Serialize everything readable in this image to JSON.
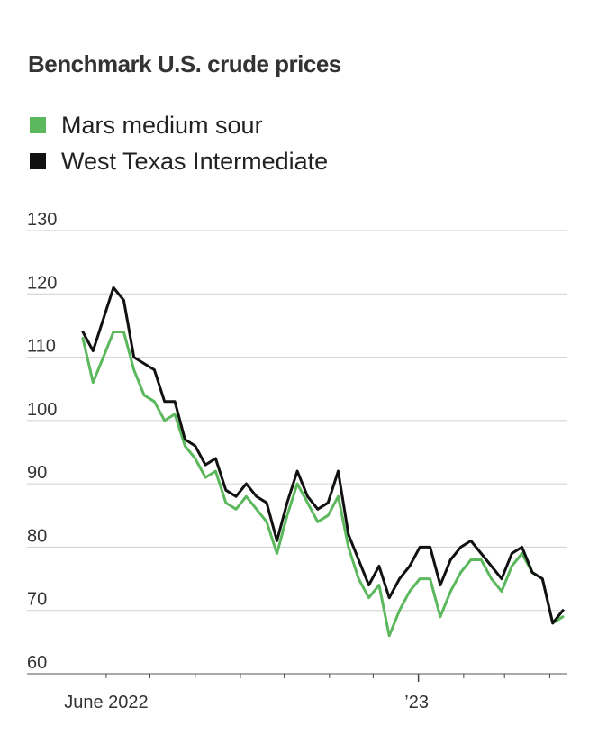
{
  "chart_data": {
    "type": "line",
    "title": "Benchmark U.S. crude prices",
    "xlabel": "",
    "ylabel": "",
    "ylim": [
      60,
      130
    ],
    "yticks": [
      130,
      120,
      110,
      100,
      90,
      80,
      70,
      60
    ],
    "xlim": [
      "2022-05-16",
      "2023-04-10"
    ],
    "xtick_labels": [
      "June 2022",
      "’23"
    ],
    "x": [
      "2022-05-16",
      "2022-05-23",
      "2022-05-30",
      "2022-06-06",
      "2022-06-13",
      "2022-06-20",
      "2022-06-27",
      "2022-07-04",
      "2022-07-11",
      "2022-07-18",
      "2022-07-25",
      "2022-08-01",
      "2022-08-08",
      "2022-08-15",
      "2022-08-22",
      "2022-08-29",
      "2022-09-05",
      "2022-09-12",
      "2022-09-19",
      "2022-09-26",
      "2022-10-03",
      "2022-10-10",
      "2022-10-17",
      "2022-10-24",
      "2022-10-31",
      "2022-11-07",
      "2022-11-14",
      "2022-11-21",
      "2022-11-28",
      "2022-12-05",
      "2022-12-12",
      "2022-12-19",
      "2022-12-26",
      "2023-01-02",
      "2023-01-09",
      "2023-01-16",
      "2023-01-23",
      "2023-01-30",
      "2023-02-06",
      "2023-02-13",
      "2023-02-20",
      "2023-02-27",
      "2023-03-06",
      "2023-03-13",
      "2023-03-20",
      "2023-03-27",
      "2023-04-03",
      "2023-04-10"
    ],
    "series": [
      {
        "name": "Mars medium sour",
        "color": "#5cb85c",
        "values": [
          113,
          106,
          110,
          114,
          114,
          108,
          104,
          103,
          100,
          101,
          96,
          94,
          91,
          92,
          87,
          86,
          88,
          86,
          84,
          79,
          85,
          90,
          87,
          84,
          85,
          88,
          80,
          75,
          72,
          74,
          66,
          70,
          73,
          75,
          75,
          69,
          73,
          76,
          78,
          78,
          75,
          73,
          77,
          79,
          76,
          75,
          68,
          69
        ]
      },
      {
        "name": "West Texas Intermediate",
        "color": "#111111",
        "values": [
          114,
          111,
          116,
          121,
          119,
          110,
          109,
          108,
          103,
          103,
          97,
          96,
          93,
          94,
          89,
          88,
          90,
          88,
          87,
          81,
          87,
          92,
          88,
          86,
          87,
          92,
          82,
          78,
          74,
          77,
          72,
          75,
          77,
          80,
          80,
          74,
          78,
          80,
          81,
          79,
          77,
          75,
          79,
          80,
          76,
          75,
          68,
          70
        ]
      }
    ]
  }
}
